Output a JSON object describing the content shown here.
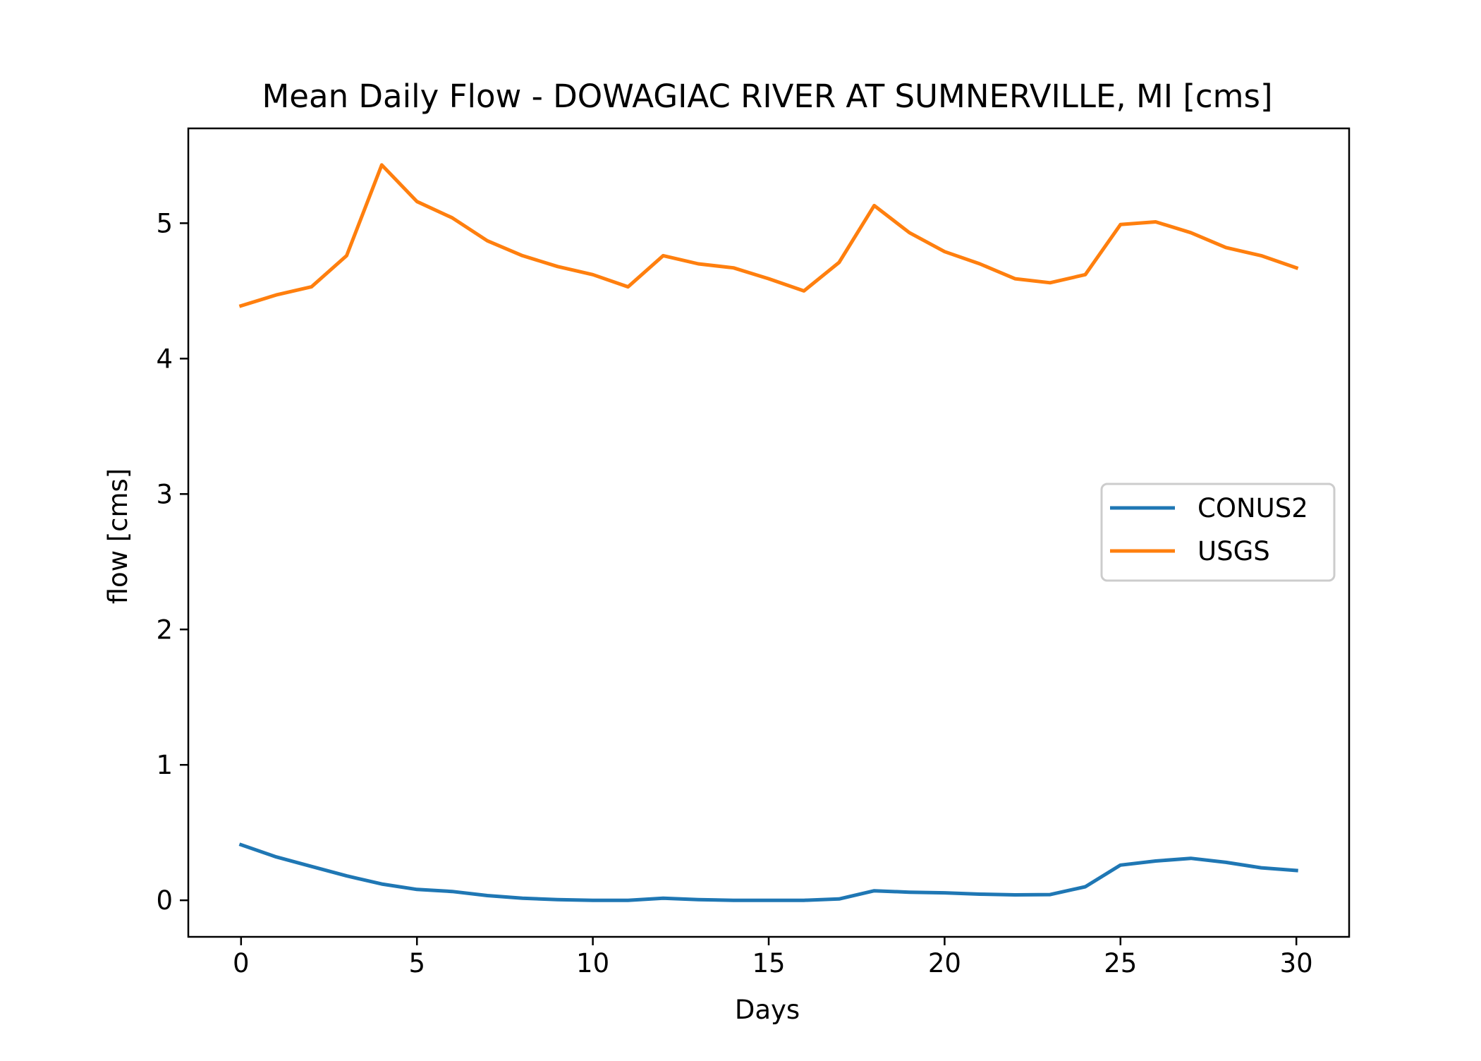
{
  "chart_data": {
    "type": "line",
    "title": "Mean Daily Flow - DOWAGIAC RIVER AT SUMNERVILLE, MI [cms]",
    "xlabel": "Days",
    "ylabel": "flow [cms]",
    "xlim": [
      -1.5,
      31.5
    ],
    "ylim": [
      -0.27,
      5.7
    ],
    "xticks": [
      0,
      5,
      10,
      15,
      20,
      25,
      30
    ],
    "yticks": [
      0,
      1,
      2,
      3,
      4,
      5
    ],
    "grid": false,
    "legend_position": "center-right",
    "x": [
      0,
      1,
      2,
      3,
      4,
      5,
      6,
      7,
      8,
      9,
      10,
      11,
      12,
      13,
      14,
      15,
      16,
      17,
      18,
      19,
      20,
      21,
      22,
      23,
      24,
      25,
      26,
      27,
      28,
      29,
      30
    ],
    "series": [
      {
        "name": "CONUS2",
        "color": "#1f77b4",
        "values": [
          0.41,
          0.32,
          0.25,
          0.18,
          0.12,
          0.08,
          0.065,
          0.035,
          0.015,
          0.005,
          0.0,
          0.0,
          0.015,
          0.005,
          0.0,
          0.0,
          0.0,
          0.01,
          0.07,
          0.06,
          0.055,
          0.045,
          0.04,
          0.042,
          0.1,
          0.26,
          0.29,
          0.31,
          0.28,
          0.24,
          0.22
        ]
      },
      {
        "name": "USGS",
        "color": "#ff7f0e",
        "values": [
          4.39,
          4.47,
          4.53,
          4.76,
          5.43,
          5.16,
          5.04,
          4.87,
          4.76,
          4.68,
          4.62,
          4.53,
          4.76,
          4.7,
          4.67,
          4.59,
          4.5,
          4.71,
          5.13,
          4.93,
          4.79,
          4.7,
          4.59,
          4.56,
          4.62,
          4.99,
          5.01,
          4.93,
          4.82,
          4.76,
          4.67
        ]
      }
    ]
  }
}
